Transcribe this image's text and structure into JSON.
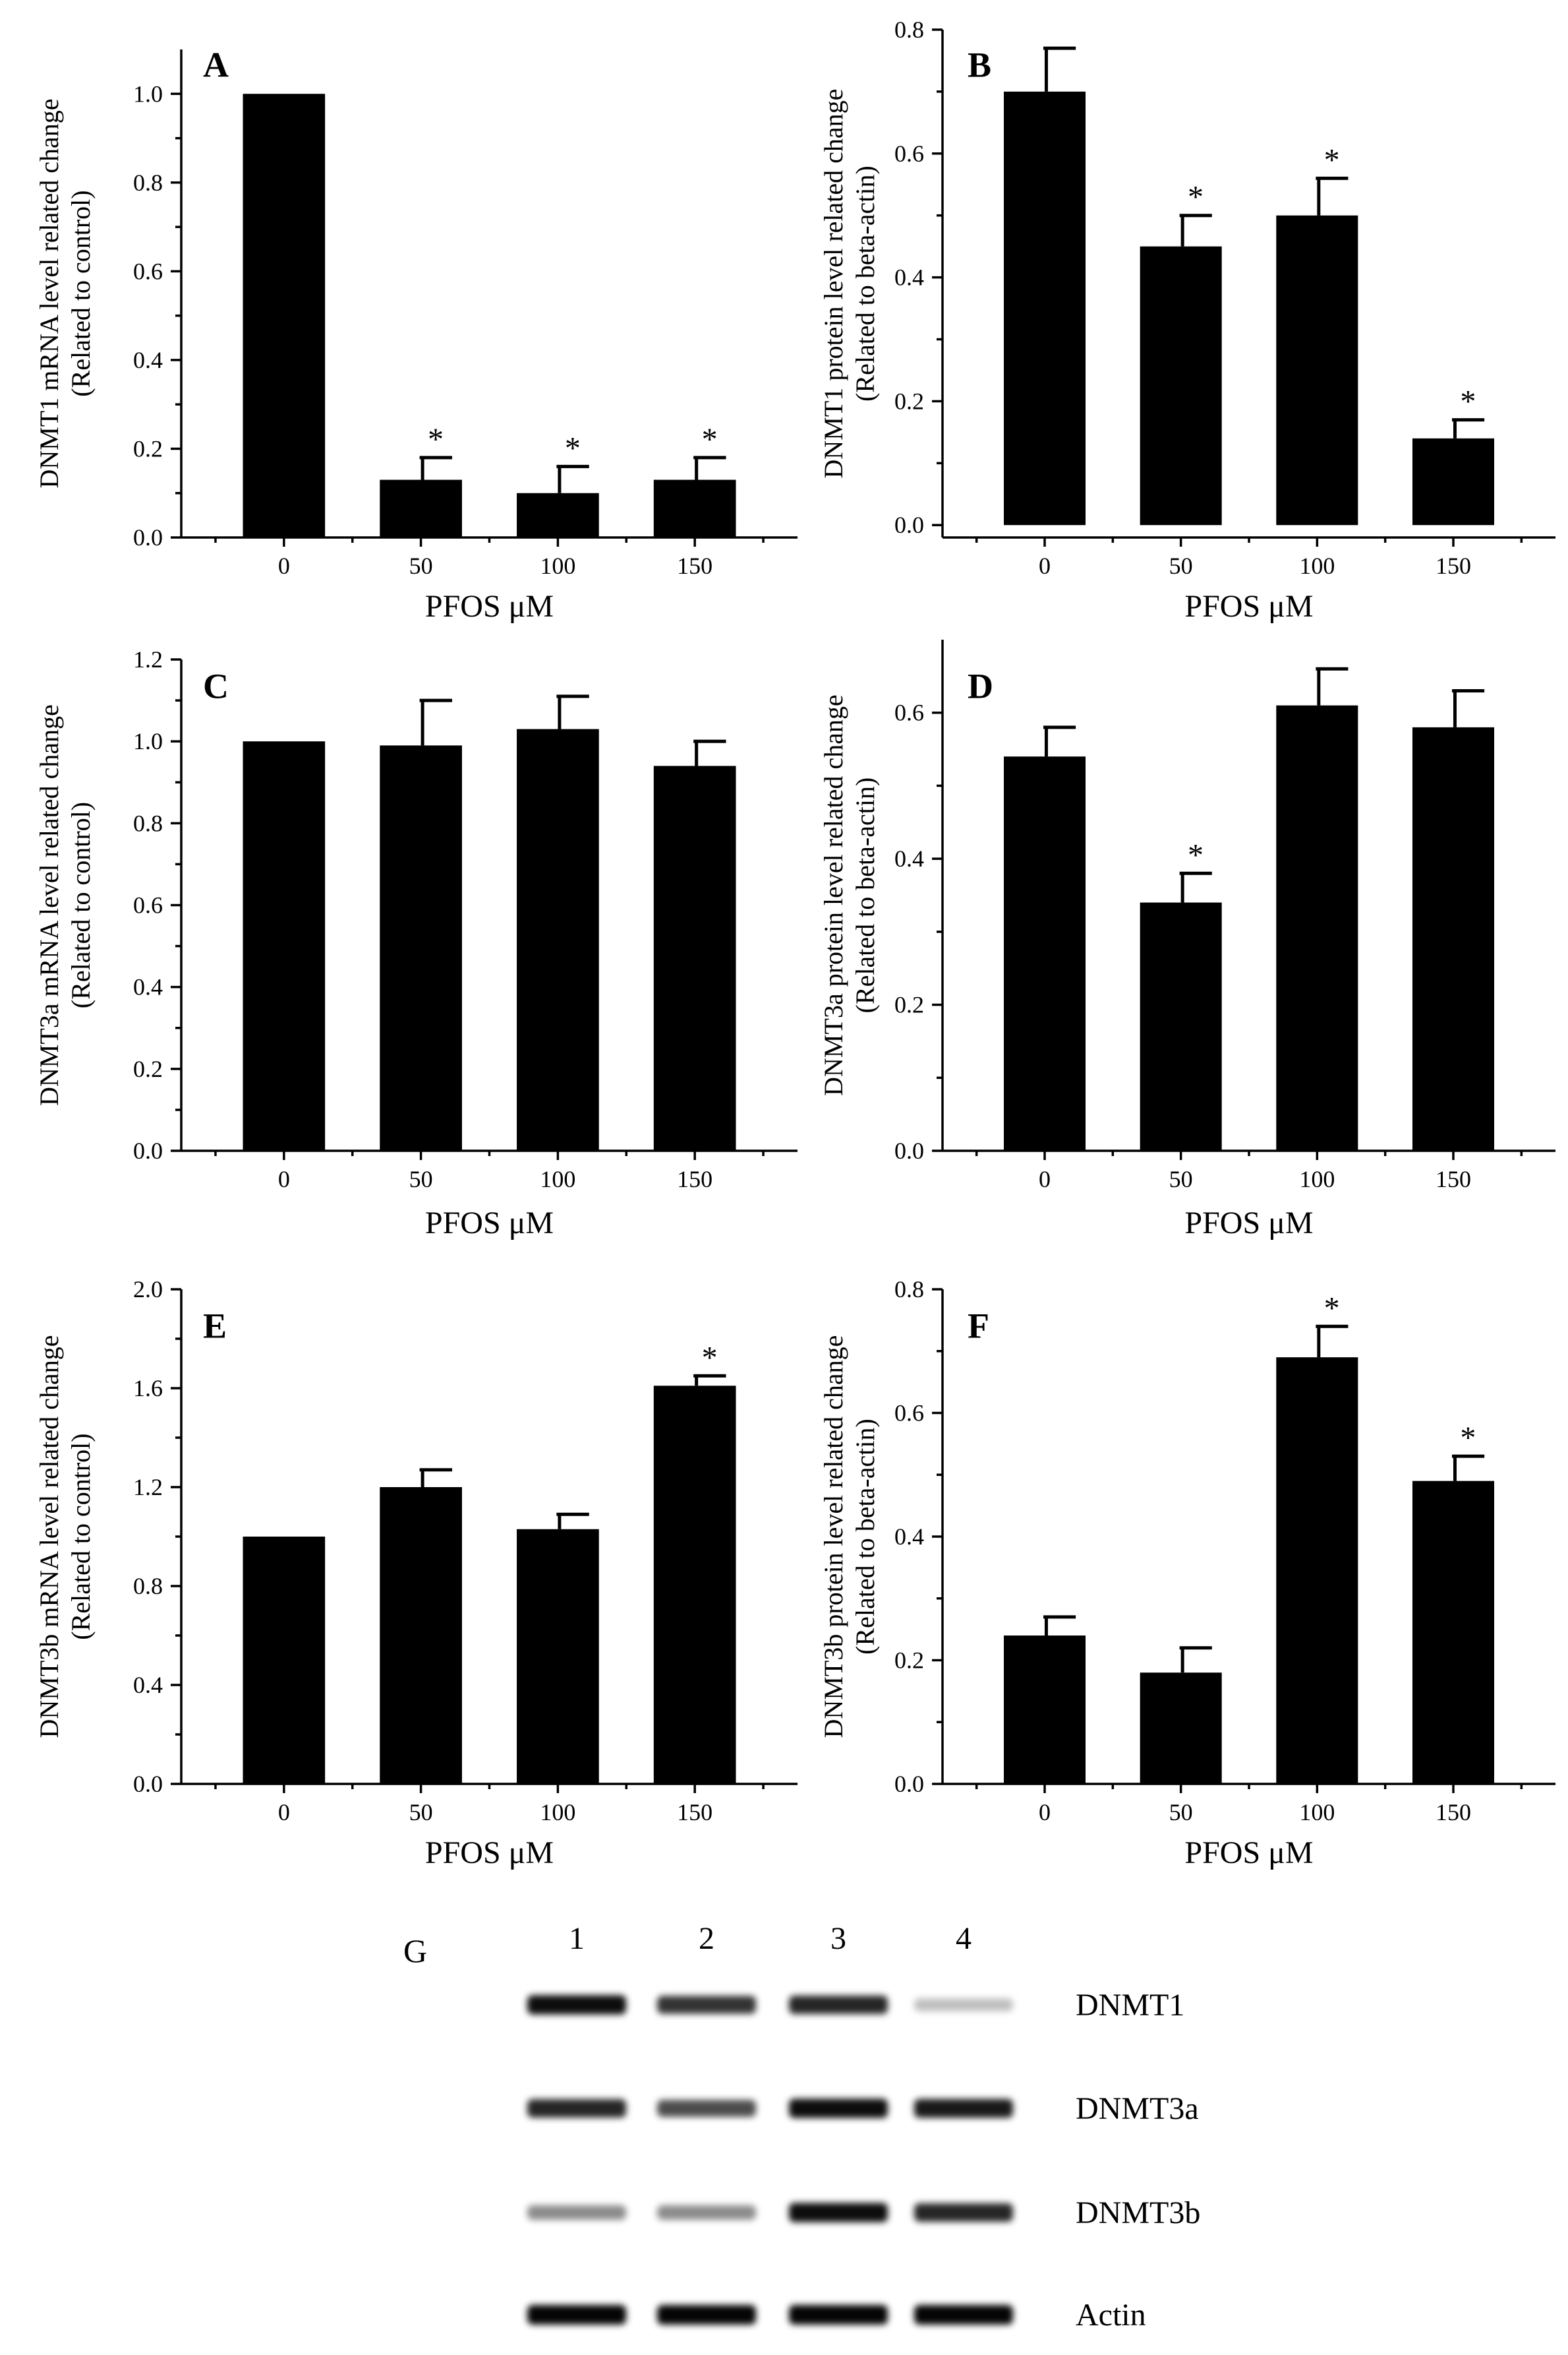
{
  "chart_data": [
    {
      "panel": "A",
      "type": "bar",
      "categories": [
        "0",
        "50",
        "100",
        "150"
      ],
      "values": [
        1.0,
        0.13,
        0.1,
        0.13
      ],
      "errors": [
        0,
        0.05,
        0.06,
        0.05
      ],
      "significant": [
        false,
        true,
        true,
        true
      ],
      "xlabel": "PFOS μM",
      "ylabel": "DNMT1 mRNA level related change",
      "ylabel2": "(Related to control)",
      "ylim": [
        0,
        1.1
      ],
      "yticks": [
        "0.0",
        "0.2",
        "0.4",
        "0.6",
        "0.8",
        "1.0"
      ]
    },
    {
      "panel": "B",
      "type": "bar",
      "categories": [
        "0",
        "50",
        "100",
        "150"
      ],
      "values": [
        0.7,
        0.45,
        0.5,
        0.14
      ],
      "errors": [
        0.07,
        0.05,
        0.06,
        0.03
      ],
      "significant": [
        false,
        true,
        true,
        true
      ],
      "xlabel": "PFOS μM",
      "ylabel": "DNMT1 protein level related change",
      "ylabel2": "(Related to beta-actin)",
      "ylim": [
        -0.02,
        0.8
      ],
      "yticks": [
        "0.0",
        "0.2",
        "0.4",
        "0.6",
        "0.8"
      ]
    },
    {
      "panel": "C",
      "type": "bar",
      "categories": [
        "0",
        "50",
        "100",
        "150"
      ],
      "values": [
        1.0,
        0.99,
        1.03,
        0.94
      ],
      "errors": [
        0,
        0.11,
        0.08,
        0.06
      ],
      "significant": [
        false,
        false,
        false,
        false
      ],
      "xlabel": "PFOS μM",
      "ylabel": "DNMT3a mRNA level related change",
      "ylabel2": "(Related to control)",
      "ylim": [
        0,
        1.2
      ],
      "yticks": [
        "0.0",
        "0.2",
        "0.4",
        "0.6",
        "0.8",
        "1.0",
        "1.2"
      ]
    },
    {
      "panel": "D",
      "type": "bar",
      "categories": [
        "0",
        "50",
        "100",
        "150"
      ],
      "values": [
        0.54,
        0.34,
        0.61,
        0.58
      ],
      "errors": [
        0.04,
        0.04,
        0.05,
        0.05
      ],
      "significant": [
        false,
        true,
        false,
        false
      ],
      "xlabel": "PFOS μM",
      "ylabel": "DNMT3a protein level related change",
      "ylabel2": "(Related to beta-actin)",
      "ylim": [
        0,
        0.7
      ],
      "yticks": [
        "0.0",
        "0.2",
        "0.4",
        "0.6"
      ]
    },
    {
      "panel": "E",
      "type": "bar",
      "categories": [
        "0",
        "50",
        "100",
        "150"
      ],
      "values": [
        1.0,
        1.2,
        1.03,
        1.61
      ],
      "errors": [
        0,
        0.07,
        0.06,
        0.04
      ],
      "significant": [
        false,
        false,
        false,
        true
      ],
      "xlabel": "PFOS μM",
      "ylabel": "DNMT3b mRNA level related change",
      "ylabel2": "(Related to control)",
      "ylim": [
        0,
        2.0
      ],
      "yticks": [
        "0.0",
        "0.4",
        "0.8",
        "1.2",
        "1.6",
        "2.0"
      ]
    },
    {
      "panel": "F",
      "type": "bar",
      "categories": [
        "0",
        "50",
        "100",
        "150"
      ],
      "values": [
        0.24,
        0.18,
        0.69,
        0.49
      ],
      "errors": [
        0.03,
        0.04,
        0.05,
        0.04
      ],
      "significant": [
        false,
        false,
        true,
        true
      ],
      "xlabel": "PFOS μM",
      "ylabel": "DNMT3b protein level related change",
      "ylabel2": "(Related to beta-actin)",
      "ylim": [
        0,
        0.8
      ],
      "yticks": [
        "0.0",
        "0.2",
        "0.4",
        "0.6",
        "0.8"
      ]
    }
  ],
  "blot": {
    "panel": "G",
    "lanes": [
      "1",
      "2",
      "3",
      "4"
    ],
    "rows": [
      {
        "label": "DNMT1",
        "intensity": [
          0.95,
          0.8,
          0.85,
          0.25
        ]
      },
      {
        "label": "DNMT3a",
        "intensity": [
          0.85,
          0.7,
          0.95,
          0.9
        ]
      },
      {
        "label": "DNMT3b",
        "intensity": [
          0.45,
          0.45,
          0.95,
          0.85
        ]
      },
      {
        "label": "Actin",
        "intensity": [
          0.98,
          0.98,
          0.98,
          0.98
        ]
      }
    ]
  },
  "significance_marker": "*"
}
